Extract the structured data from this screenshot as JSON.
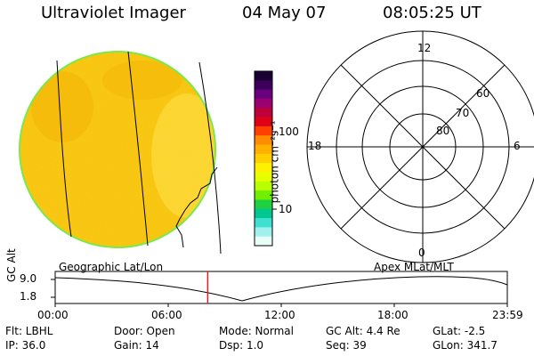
{
  "header": {
    "instrument": "Ultraviolet Imager",
    "date": "04 May 07",
    "time": "08:05:25 UT"
  },
  "colorbar": {
    "label": "photon cm⁻²s⁻¹",
    "ticks": [
      "100",
      "10"
    ],
    "colors": [
      "#1a0033",
      "#3a005a",
      "#6a0080",
      "#9a0070",
      "#c0003a",
      "#e00018",
      "#ff4000",
      "#ff8c00",
      "#ffb000",
      "#ffd000",
      "#fff000",
      "#e8ff00",
      "#b8ff00",
      "#70f000",
      "#20d040",
      "#00c890",
      "#40e0d0",
      "#a0f0f0",
      "#e8fff8"
    ]
  },
  "disk": {
    "fill_color": "#f8c200",
    "edge_color": "#7ce84c"
  },
  "polar_plot": {
    "mlt_labels": [
      "12",
      "18",
      "6",
      "0"
    ],
    "lat_labels": [
      "60",
      "70",
      "80"
    ]
  },
  "timeline": {
    "title_left": "Geographic Lat/Lon",
    "title_right": "Apex MLat/MLT",
    "ylabel": "GC Alt",
    "yticks": [
      "9.0",
      "1.8"
    ],
    "xticks": [
      "00:00",
      "06:00",
      "12:00",
      "18:00",
      "23:59"
    ],
    "marker_color": "#e02020",
    "marker_time_hours": 8.09
  },
  "info": {
    "flt": "Flt: LBHL",
    "ip": "IP: 36.0",
    "door": "Door: Open",
    "gain": "Gain: 14",
    "mode": "Mode: Normal",
    "dsp": "Dsp:     1.0",
    "gcalt": "GC Alt: 4.4 Re",
    "seq": "Seq: 39",
    "glat": "GLat:   -2.5",
    "glon": "GLon: 341.7"
  }
}
